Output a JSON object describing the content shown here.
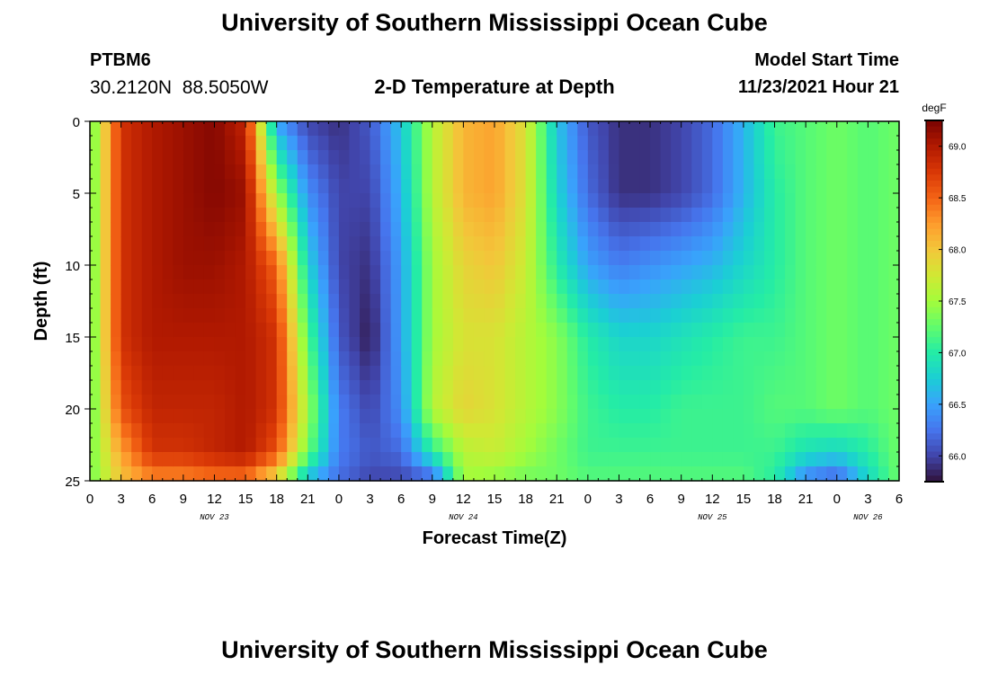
{
  "header": {
    "title": "University of Southern Mississippi Ocean Cube",
    "station": "PTBM6",
    "coords": "30.2120N  88.5050W",
    "subtitle": "2-D Temperature at Depth",
    "model_label": "Model Start Time",
    "model_time": "11/23/2021 Hour 21"
  },
  "footer": {
    "title": "University of Southern Mississippi Ocean Cube"
  },
  "chart_data": {
    "type": "heatmap",
    "xlabel": "Forecast Time(Z)",
    "ylabel": "Depth (ft)",
    "x_tick_labels": [
      "0",
      "3",
      "6",
      "9",
      "12",
      "15",
      "18",
      "21",
      "0",
      "3",
      "6",
      "9",
      "12",
      "15",
      "18",
      "21",
      "0",
      "3",
      "6",
      "9",
      "12",
      "15",
      "18",
      "21",
      "0",
      "3",
      "6"
    ],
    "date_labels": [
      {
        "label": "NOV 23",
        "hour": 12
      },
      {
        "label": "NOV 24",
        "hour": 36
      },
      {
        "label": "NOV 25",
        "hour": 60
      },
      {
        "label": "NOV 26",
        "hour": 75
      }
    ],
    "xlim_hours": [
      0,
      78
    ],
    "y_ticks": [
      0,
      5,
      10,
      15,
      20,
      25
    ],
    "ylim": [
      0,
      25
    ],
    "y_reversed": true,
    "colorbar": {
      "unit": "degF",
      "range": [
        65.75,
        69.25
      ],
      "tick_labels": [
        "69.0",
        "68.5",
        "68.0",
        "67.5",
        "67.0",
        "66.5",
        "66.0"
      ],
      "colors": [
        "#30123b",
        "#4145ab",
        "#4675ed",
        "#39a2fc",
        "#1bcfd4",
        "#24eca6",
        "#61fc6c",
        "#a4fc3b",
        "#d1e834",
        "#f3c63a",
        "#fe9b2d",
        "#f36315",
        "#d93806",
        "#b11901",
        "#7a0402"
      ]
    },
    "time_hours": [
      0,
      3,
      6,
      9,
      12,
      15,
      18,
      21,
      24,
      27,
      30,
      33,
      36,
      39,
      42,
      45,
      48,
      51,
      54,
      57,
      60,
      63,
      66,
      69,
      72,
      75,
      78
    ],
    "depths_ft": [
      0,
      5,
      10,
      15,
      20,
      23,
      25
    ],
    "temperature_degF": [
      [
        67.2,
        68.8,
        69.0,
        69.1,
        69.2,
        68.9,
        66.5,
        66.0,
        65.9,
        66.1,
        66.7,
        67.6,
        68.1,
        68.2,
        67.8,
        66.7,
        66.1,
        65.9,
        65.9,
        66.0,
        66.2,
        66.6,
        67.1,
        67.2,
        67.3,
        67.2,
        67.3
      ],
      [
        67.2,
        68.8,
        69.0,
        69.1,
        69.2,
        69.1,
        67.5,
        66.4,
        66.0,
        66.0,
        66.6,
        67.6,
        68.1,
        68.2,
        67.8,
        66.8,
        66.2,
        65.9,
        65.9,
        66.0,
        66.2,
        66.6,
        67.0,
        67.2,
        67.3,
        67.2,
        67.3
      ],
      [
        67.2,
        68.8,
        69.0,
        69.1,
        69.1,
        69.0,
        68.5,
        66.8,
        66.0,
        65.9,
        66.5,
        67.5,
        67.9,
        68.0,
        67.7,
        67.0,
        66.5,
        66.3,
        66.4,
        66.5,
        66.6,
        66.8,
        67.0,
        67.2,
        67.3,
        67.2,
        67.3
      ],
      [
        67.2,
        68.8,
        69.0,
        69.0,
        69.0,
        69.0,
        68.8,
        67.2,
        66.1,
        65.8,
        66.5,
        67.5,
        67.8,
        67.8,
        67.6,
        67.4,
        67.0,
        66.8,
        66.8,
        66.9,
        67.0,
        67.1,
        67.1,
        67.2,
        67.3,
        67.2,
        67.3
      ],
      [
        67.2,
        68.6,
        68.9,
        68.9,
        68.9,
        69.0,
        68.8,
        67.5,
        66.3,
        66.0,
        66.4,
        67.6,
        67.9,
        67.8,
        67.6,
        67.4,
        67.1,
        67.0,
        67.0,
        67.1,
        67.1,
        67.1,
        67.2,
        67.2,
        67.3,
        67.2,
        67.3
      ],
      [
        67.3,
        68.2,
        68.8,
        68.8,
        68.9,
        69.0,
        68.6,
        67.3,
        66.3,
        66.1,
        66.2,
        67.0,
        67.6,
        67.7,
        67.5,
        67.3,
        67.1,
        67.1,
        67.1,
        67.1,
        67.1,
        67.1,
        67.1,
        66.9,
        66.8,
        67.0,
        67.3
      ],
      [
        67.3,
        68.0,
        68.3,
        68.3,
        68.4,
        68.4,
        67.8,
        66.6,
        66.2,
        66.0,
        66.0,
        66.1,
        67.5,
        67.4,
        67.3,
        67.3,
        67.2,
        67.2,
        67.2,
        67.2,
        67.2,
        67.2,
        67.0,
        66.3,
        66.1,
        66.8,
        67.3
      ]
    ]
  }
}
